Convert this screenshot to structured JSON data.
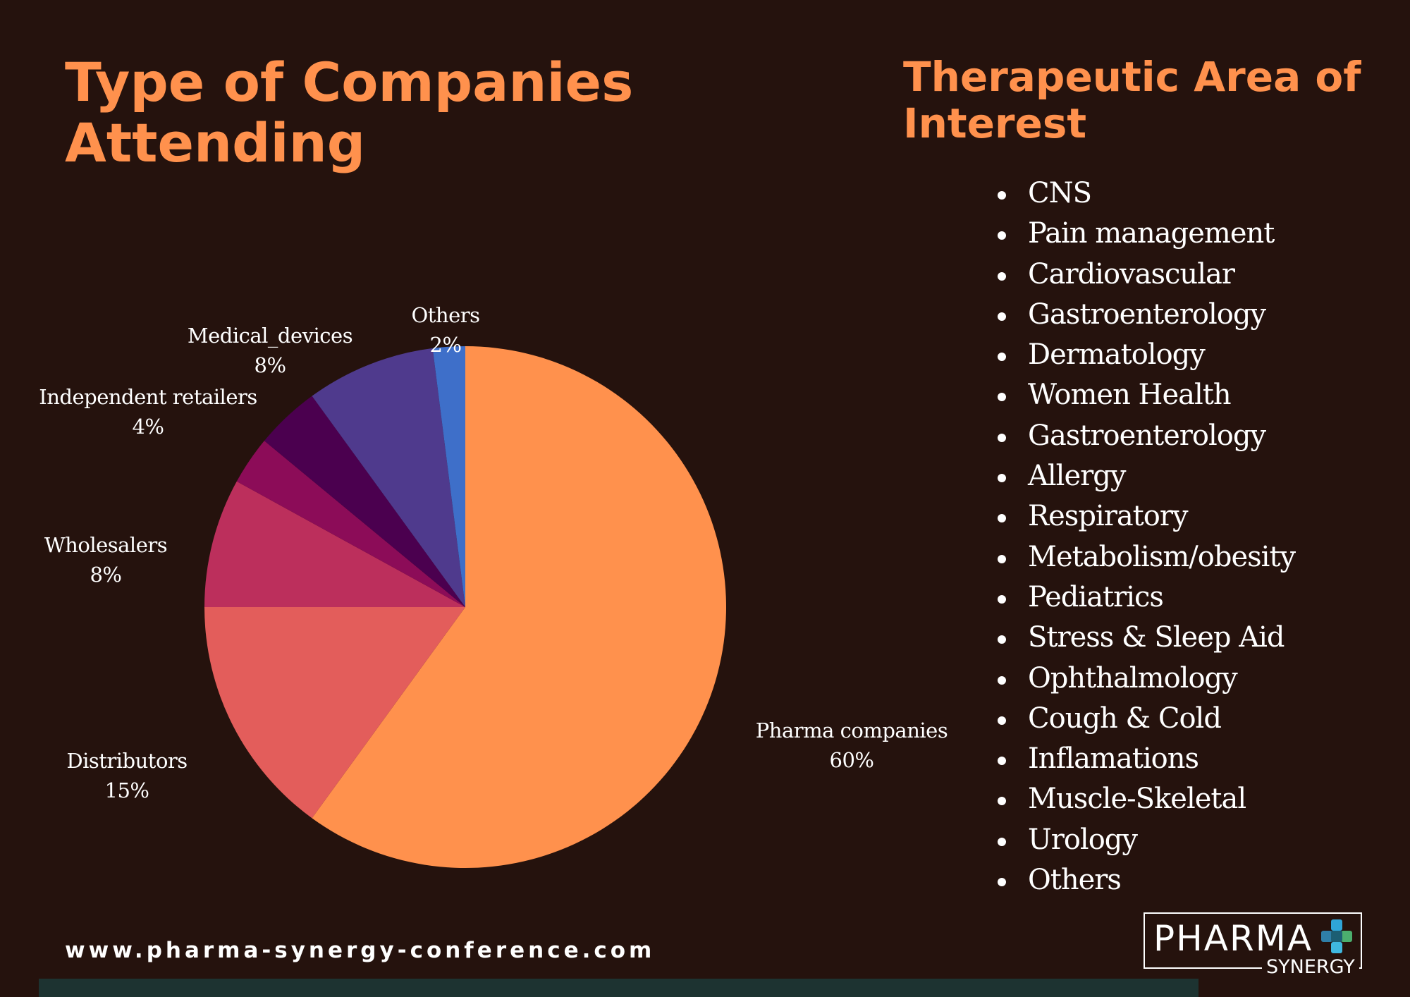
{
  "title": "Type of Companies Attending",
  "therapeutic": {
    "title": "Therapeutic Area of Interest",
    "items": [
      "CNS",
      "Pain management",
      "Cardiovascular",
      "Gastroenterology",
      "Dermatology",
      "Women Health",
      "Gastroenterology",
      "Allergy",
      "Respiratory",
      "Metabolism/obesity",
      "Pediatrics",
      "Stress & Sleep Aid",
      "Ophthalmology",
      "Cough & Cold",
      "Inflamations",
      "Muscle-Skeletal",
      "Urology",
      "Others"
    ]
  },
  "chart_data": {
    "type": "pie",
    "title": "Type of Companies Attending",
    "slices": [
      {
        "name": "Pharma companies",
        "value": 60,
        "label": "60%",
        "color": "#ff914d"
      },
      {
        "name": "Distributors",
        "value": 15,
        "label": "15%",
        "color": "#e35d5b"
      },
      {
        "name": "Wholesalers",
        "value": 8,
        "label": "8%",
        "color": "#bc2f5c"
      },
      {
        "name": "",
        "value": 3,
        "label": "",
        "color": "#8c0c58"
      },
      {
        "name": "Independent retailers",
        "value": 4,
        "label": "4%",
        "color": "#4b004f"
      },
      {
        "name": "Medical_devices",
        "value": 8,
        "label": "8%",
        "color": "#4f3a8d"
      },
      {
        "name": "Others",
        "value": 2,
        "label": "2%",
        "color": "#3e6fc9"
      }
    ]
  },
  "footer": {
    "url": "www.pharma-synergy-conference.com"
  },
  "logo": {
    "main": "PHARMA",
    "sub": "SYNERGY"
  },
  "colors": {
    "background": "#25120d",
    "accent": "#ff914d",
    "bottom_bar": "#1d3331"
  }
}
